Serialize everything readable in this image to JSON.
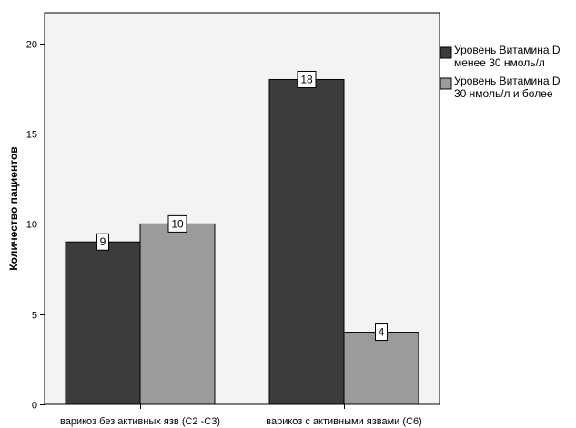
{
  "chart_data": {
    "type": "bar",
    "ylabel": "Количество пациентов",
    "xlabel": "",
    "categories": [
      "варикоз без активных язв  (C2 -C3)",
      "варикоз с активными язвами (C6)"
    ],
    "series": [
      {
        "name": "Уровень Витамина D менее 30 нмоль/л",
        "color": "#3c3c3c",
        "values": [
          9,
          18
        ]
      },
      {
        "name": "Уровень Витамина D 30 нмоль/л и более",
        "color": "#9b9b9b",
        "values": [
          10,
          4
        ]
      }
    ],
    "yticks": [
      0,
      5,
      10,
      15,
      20
    ],
    "ylim": [
      0,
      21.7
    ],
    "legend_position": "right",
    "plot_background": "#f3f3f3",
    "legend_lines": [
      [
        "Уровень Витамина D",
        "менее 30 нмоль/л"
      ],
      [
        "Уровень Витамина D",
        "30 нмоль/л и более"
      ]
    ]
  }
}
